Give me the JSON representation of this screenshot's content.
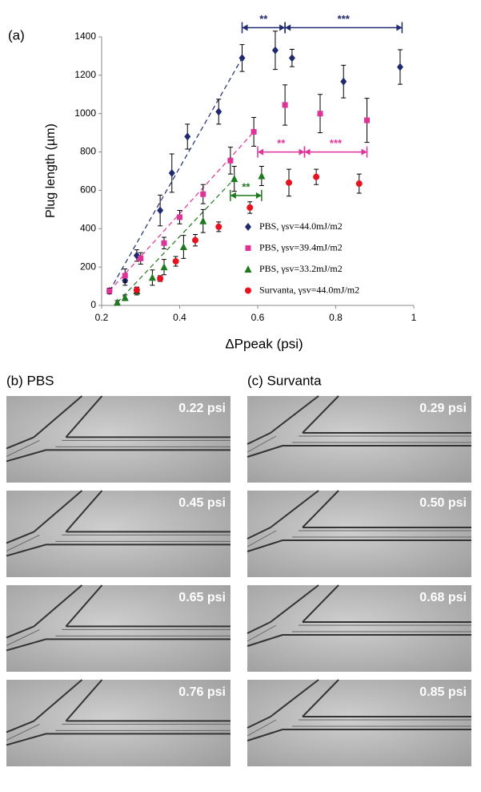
{
  "chart_data": {
    "type": "scatter",
    "panel_label": "(a)",
    "xlabel": "ΔPpeak (psi)",
    "ylabel": "Plug length (µm)",
    "xlim": [
      0.2,
      1.0
    ],
    "xticks": [
      0.2,
      0.4,
      0.6,
      0.8,
      1.0
    ],
    "ylim": [
      0,
      1400
    ],
    "yticks": [
      0,
      200,
      400,
      600,
      800,
      1000,
      1200,
      1400
    ],
    "legend": "lower right",
    "series": [
      {
        "name": "PBS, γsv=44.0mJ/m2",
        "color": "#1f2a6e",
        "marker": "diamond",
        "x": [
          0.22,
          0.26,
          0.29,
          0.35,
          0.38,
          0.42,
          0.5,
          0.56,
          0.645,
          0.688,
          0.82,
          0.965
        ],
        "values": [
          75,
          130,
          260,
          495,
          690,
          880,
          1010,
          1290,
          1330,
          1290,
          1167,
          1243
        ],
        "errors": [
          10,
          25,
          30,
          80,
          100,
          65,
          65,
          70,
          100,
          45,
          85,
          90
        ],
        "trendline": {
          "x": [
            0.22,
            0.56
          ],
          "y": [
            75,
            1290
          ]
        }
      },
      {
        "name": "PBS, γsv=39.4mJ/m2",
        "color": "#e0339a",
        "marker": "square",
        "x": [
          0.22,
          0.26,
          0.3,
          0.36,
          0.4,
          0.46,
          0.53,
          0.59,
          0.67,
          0.76,
          0.88
        ],
        "values": [
          75,
          155,
          245,
          325,
          460,
          580,
          755,
          905,
          1045,
          1000,
          965
        ],
        "errors": [
          15,
          35,
          30,
          30,
          35,
          50,
          70,
          75,
          105,
          100,
          115
        ],
        "trendline": {
          "x": [
            0.22,
            0.59
          ],
          "y": [
            75,
            905
          ]
        }
      },
      {
        "name": "PBS, γsv=33.2mJ/m2",
        "color": "#1e7a1e",
        "marker": "triangle",
        "x": [
          0.24,
          0.26,
          0.29,
          0.33,
          0.36,
          0.41,
          0.46,
          0.54,
          0.61
        ],
        "values": [
          15,
          40,
          75,
          145,
          200,
          305,
          440,
          660,
          675
        ],
        "errors": [
          10,
          15,
          20,
          40,
          40,
          60,
          60,
          65,
          50
        ],
        "trendline": {
          "x": [
            0.24,
            0.54
          ],
          "y": [
            15,
            660
          ]
        }
      },
      {
        "name": "Survanta, γsv=44.0mJ/m2",
        "color": "#e8121e",
        "marker": "circle",
        "x": [
          0.29,
          0.35,
          0.39,
          0.44,
          0.5,
          0.58,
          0.68,
          0.75,
          0.86
        ],
        "values": [
          80,
          140,
          230,
          340,
          410,
          510,
          640,
          670,
          635
        ],
        "errors": [
          15,
          15,
          25,
          30,
          25,
          30,
          70,
          40,
          50
        ]
      }
    ],
    "brackets": [
      {
        "label": "**",
        "x": [
          0.56,
          0.67
        ],
        "y": 1448,
        "color": "#1f2a6e"
      },
      {
        "label": "***",
        "x": [
          0.67,
          0.97
        ],
        "y": 1448,
        "color": "#1f2a6e"
      },
      {
        "label": "**",
        "x": [
          0.6,
          0.72
        ],
        "y": 800,
        "color": "#e0339a"
      },
      {
        "label": "***",
        "x": [
          0.72,
          0.88
        ],
        "y": 800,
        "color": "#e0339a"
      },
      {
        "label": "**",
        "x": [
          0.53,
          0.61
        ],
        "y": 573,
        "color": "#1e7a1e"
      }
    ]
  },
  "micrographs": [
    {
      "title": "(b) PBS",
      "images": [
        "0.22 psi",
        "0.45 psi",
        "0.65 psi",
        "0.76 psi"
      ]
    },
    {
      "title": "(c) Survanta",
      "images": [
        "0.29 psi",
        "0.50 psi",
        "0.68 psi",
        "0.85 psi"
      ]
    }
  ]
}
